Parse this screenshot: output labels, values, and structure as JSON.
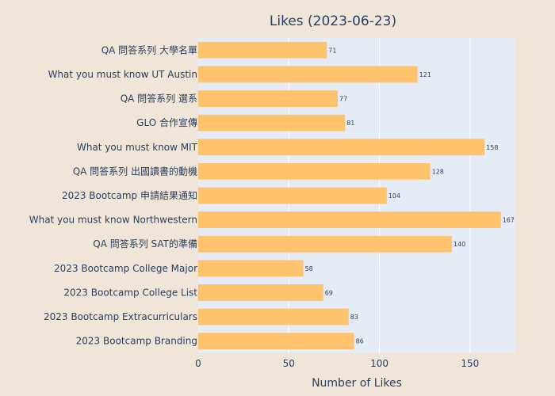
{
  "chart_data": {
    "type": "bar",
    "orientation": "horizontal",
    "title": "Likes (2023-06-23)",
    "xlabel": "Number of Likes",
    "ylabel": "",
    "xlim": [
      0,
      175
    ],
    "xticks": [
      0,
      50,
      100,
      150
    ],
    "grid": true,
    "categories": [
      "QA 問答系列 大學名單",
      "What you must know UT Austin",
      "QA 問答系列 選系",
      "GLO 合作宣傳",
      "What you must know MIT",
      "QA 問答系列 出國讀書的動機",
      "2023 Bootcamp 申請結果通知",
      "What you must know Northwestern",
      "QA 問答系列 SAT的準備",
      "2023 Bootcamp College Major",
      "2023 Bootcamp College List",
      "2023 Bootcamp Extracurriculars",
      "2023 Bootcamp Branding"
    ],
    "values": [
      71,
      121,
      77,
      81,
      158,
      128,
      104,
      167,
      140,
      58,
      69,
      83,
      86
    ],
    "bar_color": "#ffc36e",
    "plot_bg_color": "#e5ecf6",
    "paper_bg_color": "#efe5d8"
  }
}
